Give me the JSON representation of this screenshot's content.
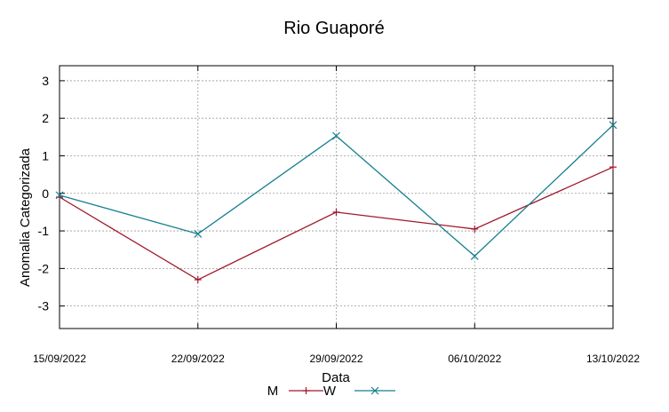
{
  "chart_data": {
    "type": "line",
    "title": "Rio Guaporé",
    "xlabel": "Data",
    "ylabel": "Anomalia Categorizada",
    "categories": [
      "15/09/2022",
      "22/09/2022",
      "29/09/2022",
      "06/10/2022",
      "13/10/2022"
    ],
    "y_ticks": [
      "3",
      "2",
      "1",
      "0",
      "-1",
      "-2",
      "-3"
    ],
    "ylim": [
      -3.6,
      3.4
    ],
    "grid": true,
    "legend_position": "bottom-center",
    "series": [
      {
        "name": "M",
        "values": [
          -0.1,
          -2.3,
          -0.5,
          -0.95,
          0.7
        ],
        "color": "#a0182c",
        "marker": "plus"
      },
      {
        "name": "W",
        "values": [
          -0.05,
          -1.08,
          1.53,
          -1.67,
          1.82
        ],
        "color": "#157f8f",
        "marker": "cross"
      }
    ]
  }
}
